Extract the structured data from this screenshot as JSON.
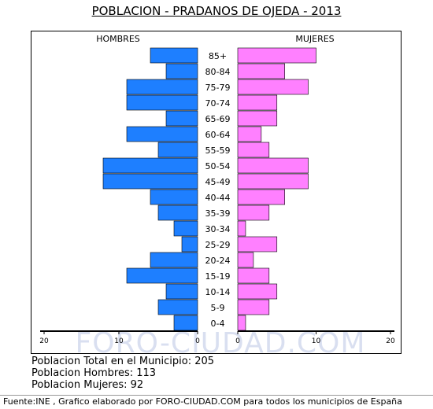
{
  "page_title": "POBLACION - PRADANOS DE OJEDA - 2013",
  "watermark": "FORO-CIUDAD.COM",
  "stats": {
    "total": "Poblacion Total en el Municipio: 205",
    "hombres": "Poblacion Hombres: 113",
    "mujeres": "Poblacion Mujeres: 92"
  },
  "footer": "Fuente:INE , Grafico elaborado por FORO-CIUDAD.COM para todos los municipios de España",
  "colors": {
    "male": "#1E7FFF",
    "female": "#FF80FF",
    "male_label_bg": "#ffffff",
    "watermark": "#d9dff0"
  },
  "chart_data": {
    "type": "bar",
    "orientation": "horizontal",
    "layout": "population-pyramid",
    "left_label": "HOMBRES",
    "right_label": "MUJERES",
    "categories": [
      "85+",
      "80-84",
      "75-79",
      "70-74",
      "65-69",
      "60-64",
      "55-59",
      "50-54",
      "45-49",
      "40-44",
      "35-39",
      "30-34",
      "25-29",
      "20-24",
      "15-19",
      "10-14",
      "5-9",
      "0-4"
    ],
    "series": [
      {
        "name": "HOMBRES",
        "values": [
          6,
          4,
          9,
          9,
          4,
          9,
          5,
          12,
          12,
          6,
          5,
          3,
          2,
          6,
          9,
          4,
          5,
          3
        ]
      },
      {
        "name": "MUJERES",
        "values": [
          10,
          6,
          9,
          5,
          5,
          3,
          4,
          9,
          9,
          6,
          4,
          1,
          5,
          2,
          4,
          5,
          4,
          1
        ]
      }
    ],
    "xlim": [
      0,
      20
    ],
    "x_ticks_left": [
      "20",
      "10",
      "0"
    ],
    "x_ticks_right": [
      "0",
      "10",
      "20"
    ]
  }
}
